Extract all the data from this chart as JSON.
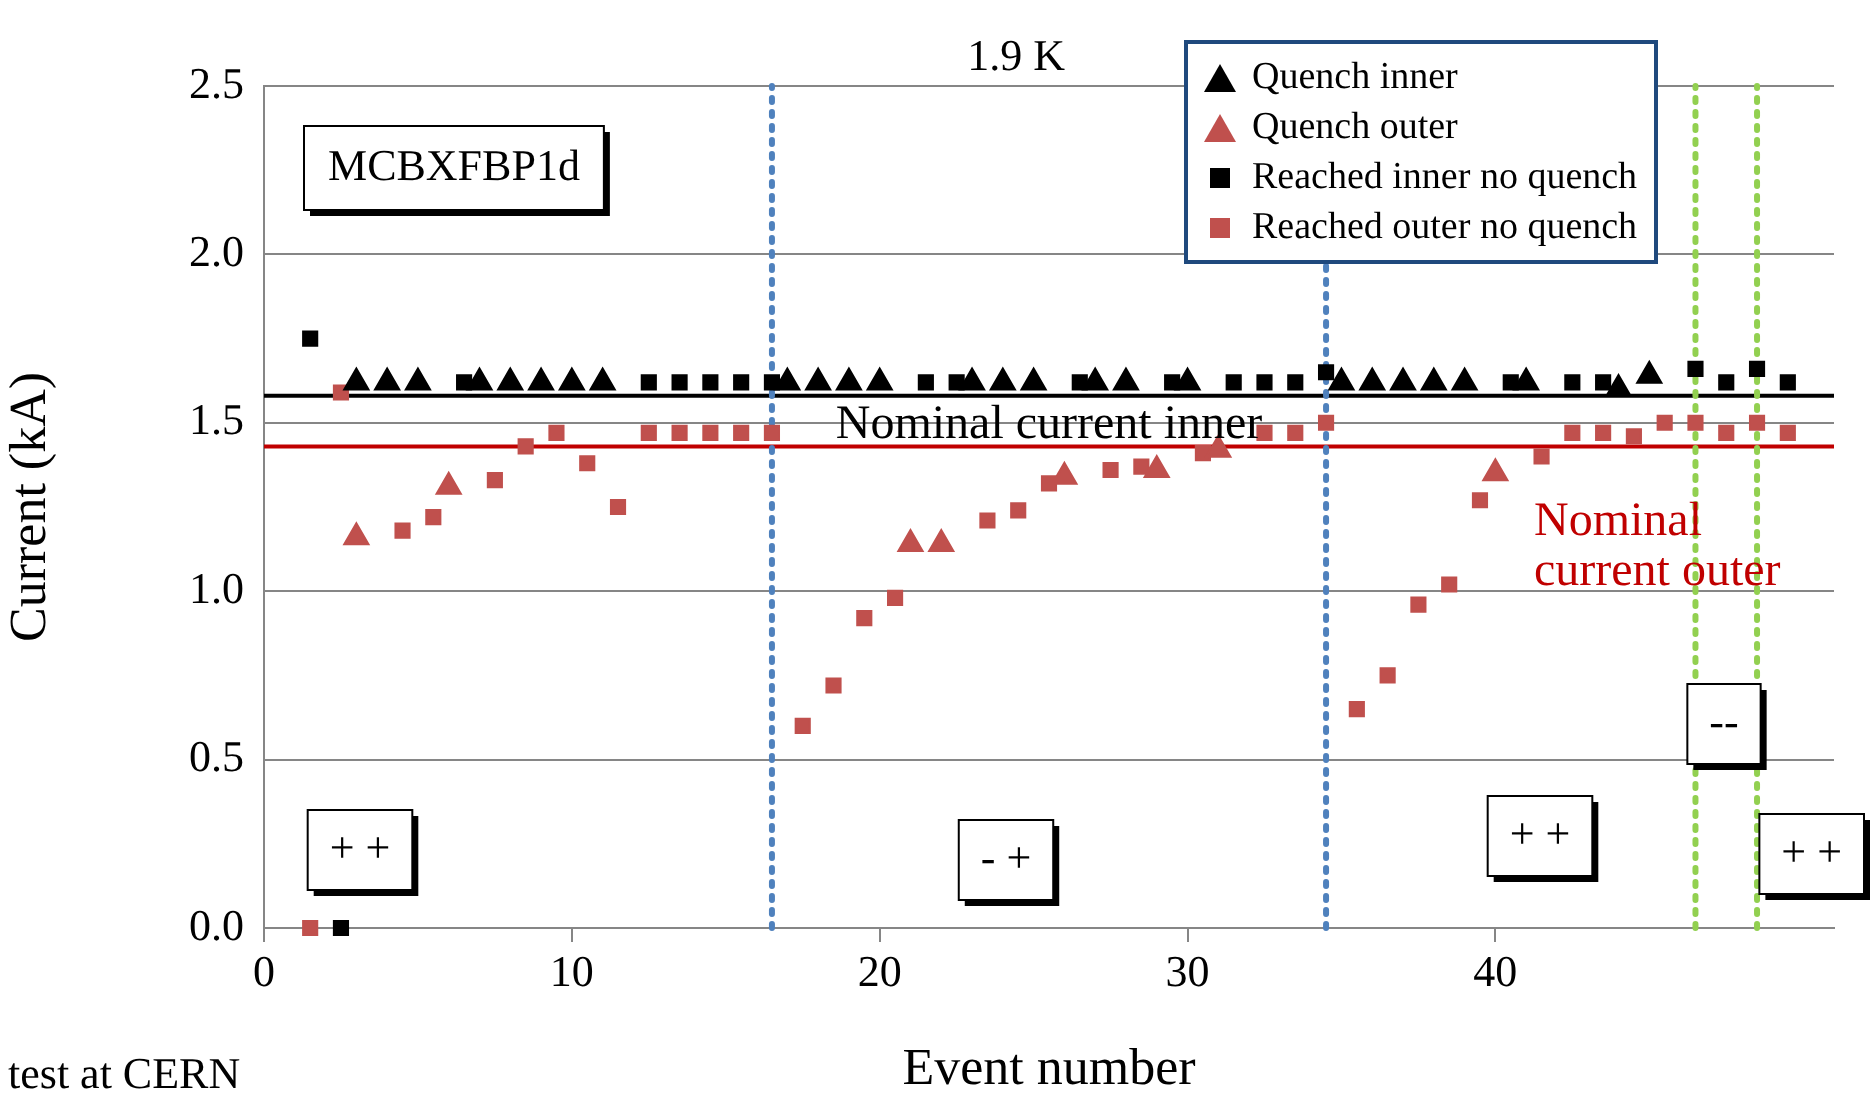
{
  "chart_data": {
    "type": "scatter",
    "title": "MCBXFBP1d",
    "subtitle": "1.9 K",
    "xlabel": "Event number",
    "ylabel": "Current (kA)",
    "xlim": [
      0,
      51
    ],
    "xticks": [
      0,
      10,
      20,
      30,
      40
    ],
    "ylim": [
      0,
      2.5
    ],
    "yticks": [
      {
        "value": 0,
        "label": "0.0"
      },
      0.5,
      {
        "value": 1,
        "label": "1.0"
      },
      1.5,
      {
        "value": 2,
        "label": "2.0"
      },
      2.5
    ],
    "grid": "y",
    "legend": "top right",
    "series": [
      {
        "name": "Quench inner",
        "color": "#000000",
        "marker": "triangle",
        "x": [
          3,
          4,
          5,
          7,
          8,
          9,
          10,
          11,
          17,
          18,
          19,
          20,
          23,
          24,
          25,
          27,
          28,
          30,
          35,
          36,
          37,
          38,
          39,
          41,
          44,
          45
        ],
        "values": [
          1.62,
          1.62,
          1.62,
          1.62,
          1.62,
          1.62,
          1.62,
          1.62,
          1.62,
          1.62,
          1.62,
          1.62,
          1.62,
          1.62,
          1.62,
          1.62,
          1.62,
          1.62,
          1.62,
          1.62,
          1.62,
          1.62,
          1.62,
          1.62,
          1.6,
          1.64
        ]
      },
      {
        "name": "Quench outer",
        "color": "#c0504d",
        "marker": "triangle",
        "x": [
          3,
          6,
          21,
          22,
          26,
          29,
          31,
          40
        ],
        "values": [
          1.16,
          1.31,
          1.14,
          1.14,
          1.34,
          1.36,
          1.42,
          1.35
        ]
      },
      {
        "name": "Reached inner no quench",
        "color": "#000000",
        "marker": "square",
        "x": [
          1.5,
          2.5,
          6.5,
          12.5,
          13.5,
          14.5,
          15.5,
          16.5,
          21.5,
          22.5,
          26.5,
          29.5,
          31.5,
          32.5,
          33.5,
          34.5,
          40.5,
          42.5,
          43.5,
          46.5,
          47.5,
          48.5,
          49.5
        ],
        "values": [
          1.75,
          0,
          1.62,
          1.62,
          1.62,
          1.62,
          1.62,
          1.62,
          1.62,
          1.62,
          1.62,
          1.62,
          1.62,
          1.62,
          1.62,
          1.65,
          1.62,
          1.62,
          1.62,
          1.66,
          1.62,
          1.66,
          1.62
        ]
      },
      {
        "name": "Reached outer no quench",
        "color": "#c0504d",
        "marker": "square",
        "x": [
          1.5,
          2.5,
          4.5,
          5.5,
          7.5,
          8.5,
          9.5,
          10.5,
          11.5,
          12.5,
          13.5,
          14.5,
          15.5,
          16.5,
          17.5,
          18.5,
          19.5,
          20.5,
          23.5,
          24.5,
          25.5,
          27.5,
          28.5,
          30.5,
          32.5,
          33.5,
          34.5,
          35.5,
          36.5,
          37.5,
          38.5,
          39.5,
          41.5,
          42.5,
          43.5,
          44.5,
          45.5,
          46.5,
          47.5,
          48.5,
          49.5
        ],
        "values": [
          0,
          1.59,
          1.18,
          1.22,
          1.33,
          1.43,
          1.47,
          1.38,
          1.25,
          1.47,
          1.47,
          1.47,
          1.47,
          1.47,
          0.6,
          0.72,
          0.92,
          0.98,
          1.21,
          1.24,
          1.32,
          1.36,
          1.37,
          1.41,
          1.47,
          1.47,
          1.5,
          0.65,
          0.75,
          0.96,
          1.02,
          1.27,
          1.4,
          1.47,
          1.47,
          1.46,
          1.5,
          1.5,
          1.47,
          1.5,
          1.47
        ]
      }
    ],
    "ref_lines": [
      {
        "axis": "y",
        "value": 1.58,
        "label": "Nominal current inner",
        "color": "#000000",
        "line_style": "solid"
      },
      {
        "axis": "y",
        "value": 1.43,
        "label": "Nominal current outer",
        "color": "#c00000",
        "line_style": "solid"
      },
      {
        "axis": "x",
        "value": 16.5,
        "color": "#4f81bd",
        "line_style": "dotted"
      },
      {
        "axis": "x",
        "value": 34.5,
        "color": "#4f81bd",
        "line_style": "dotted"
      },
      {
        "axis": "x",
        "value": 46.5,
        "color": "#92d050",
        "line_style": "dotted"
      },
      {
        "axis": "x",
        "value": 48.5,
        "color": "#92d050",
        "line_style": "dotted"
      }
    ],
    "annotations": [
      "+ +",
      "- +",
      "+ +",
      "--",
      "+ +",
      "test at CERN"
    ]
  }
}
